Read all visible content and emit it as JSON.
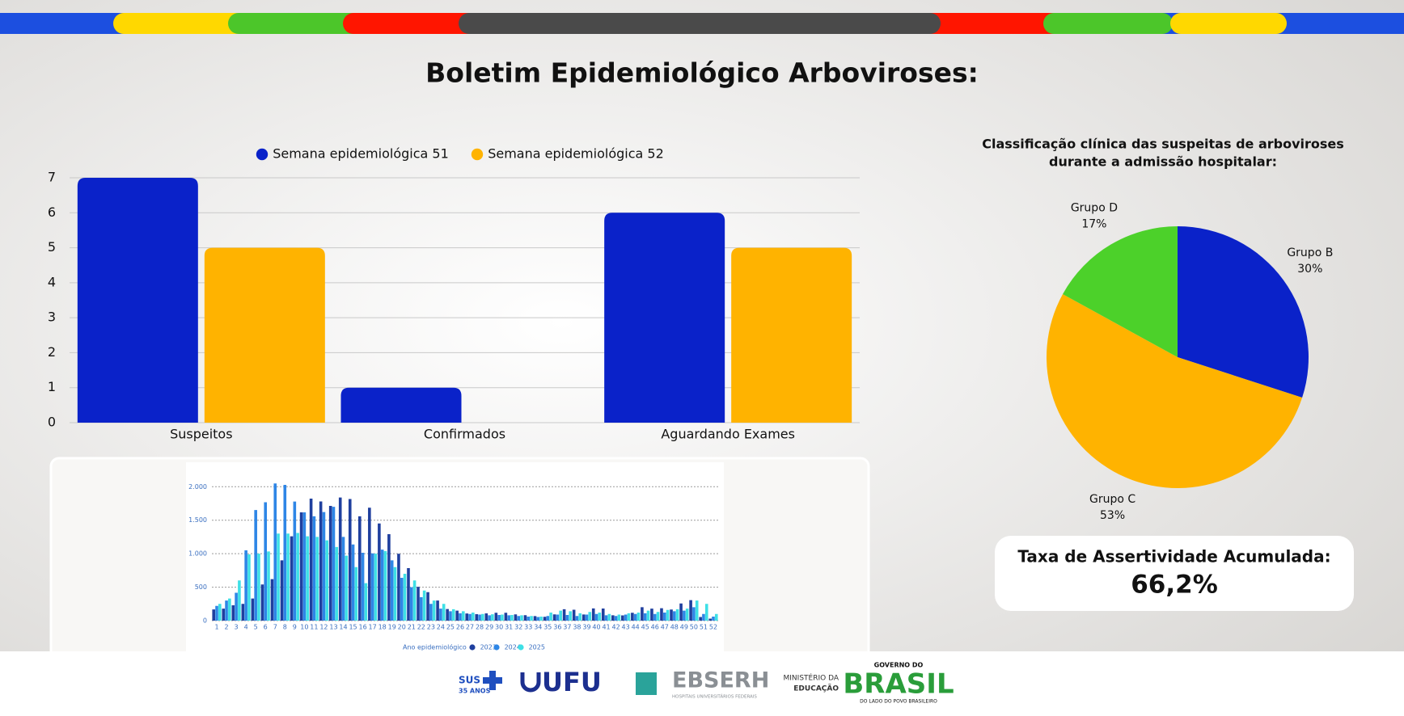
{
  "title": "Boletim Epidemiológico Arboviroses:",
  "chart_data": [
    {
      "type": "bar",
      "categories": [
        "Suspeitos",
        "Confirmados",
        "Aguardando Exames"
      ],
      "series": [
        {
          "name": "Semana epidemiológica 51",
          "color": "#0a22c9",
          "values": [
            7,
            1,
            6
          ]
        },
        {
          "name": "Semana epidemiológica 52",
          "color": "#ffb300",
          "values": [
            5,
            0,
            5
          ]
        }
      ],
      "ylim": [
        0,
        7
      ],
      "yticks": [
        0,
        1,
        2,
        3,
        4,
        5,
        6,
        7
      ],
      "grid": true,
      "legend": "top"
    },
    {
      "type": "bar",
      "legend_title": "Ano epidemiológico",
      "categories": [
        "1",
        "2",
        "3",
        "4",
        "5",
        "6",
        "7",
        "8",
        "9",
        "10",
        "11",
        "12",
        "13",
        "14",
        "15",
        "16",
        "17",
        "18",
        "19",
        "20",
        "21",
        "22",
        "23",
        "24",
        "25",
        "26",
        "27",
        "28",
        "29",
        "30",
        "31",
        "32",
        "33",
        "34",
        "35",
        "36",
        "37",
        "38",
        "39",
        "40",
        "41",
        "42",
        "43",
        "44",
        "45",
        "46",
        "47",
        "48",
        "49",
        "50",
        "51",
        "52"
      ],
      "series": [
        {
          "name": "2023",
          "color": "#1f3f9e",
          "values": [
            168,
            180,
            230,
            250,
            330,
            540,
            620,
            900,
            1260,
            1617,
            1823,
            1780,
            1714,
            1839,
            1817,
            1559,
            1687,
            1451,
            1292,
            999,
            784,
            506,
            425,
            300,
            174,
            149,
            107,
            96,
            109,
            118,
            117,
            94,
            81,
            68,
            57,
            93,
            171,
            163,
            92,
            182,
            181,
            80,
            79,
            117,
            201,
            180,
            186,
            166,
            257,
            307,
            54,
            30
          ]
        },
        {
          "name": "2024",
          "color": "#2e86e6",
          "values": [
            220,
            300,
            417,
            1050,
            1652,
            1768,
            2049,
            2028,
            1778,
            1617,
            1559,
            1622,
            1700,
            1250,
            1138,
            1014,
            1004,
            1060,
            900,
            640,
            500,
            350,
            250,
            180,
            140,
            110,
            100,
            90,
            80,
            85,
            80,
            70,
            60,
            55,
            70,
            90,
            85,
            70,
            90,
            100,
            80,
            70,
            90,
            100,
            110,
            100,
            120,
            140,
            150,
            200,
            100,
            60
          ]
        },
        {
          "name": "2025",
          "color": "#3ee0e6",
          "values": [
            250,
            330,
            600,
            990,
            1000,
            1033,
            1300,
            1300,
            1310,
            1260,
            1250,
            1200,
            1100,
            970,
            800,
            560,
            1000,
            1040,
            800,
            700,
            600,
            450,
            300,
            250,
            170,
            140,
            120,
            100,
            95,
            90,
            85,
            80,
            70,
            60,
            120,
            150,
            140,
            110,
            130,
            120,
            100,
            90,
            110,
            120,
            150,
            130,
            160,
            170,
            180,
            300,
            250,
            100
          ]
        }
      ],
      "ylim": [
        0,
        2100
      ],
      "yticks": [
        0,
        500,
        {
          "value": 1000,
          "label": "1.000"
        },
        {
          "value": 1500,
          "label": "1.500"
        },
        {
          "value": 2000,
          "label": "2.000"
        }
      ],
      "grid": true,
      "legend": "bottom"
    },
    {
      "type": "pie",
      "title": [
        "Classificação clínica das suspeitas de arboviroses",
        "durante a admissão hospitalar:"
      ],
      "categories": [
        "Grupo B",
        "Grupo C",
        "Grupo D"
      ],
      "values": [
        30,
        53,
        17
      ],
      "value_labels": [
        "30%",
        "53%",
        "17%"
      ],
      "colors": [
        "#0a22c9",
        "#ffb300",
        "#4cd12a"
      ]
    }
  ],
  "kpi": {
    "label": "Taxa de Assertividade Acumulada:",
    "value": "66,2%"
  },
  "footer": {
    "logos": [
      "SUS",
      "35 ANOS",
      "UFU",
      "EBSERH",
      "HOSPITAIS UNIVERSITÁRIOS FEDERAIS",
      "MINISTÉRIO DA",
      "EDUCAÇÃO",
      "GOVERNO DO",
      "BRASIL",
      "DO LADO DO POVO BRASILEIRO"
    ]
  }
}
